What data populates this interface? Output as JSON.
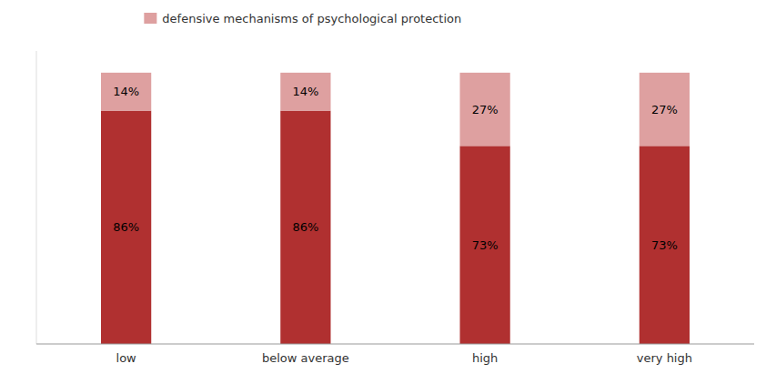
{
  "chart_data": {
    "type": "bar",
    "stacked": true,
    "categories": [
      "low",
      "below average",
      "high",
      "very high"
    ],
    "series": [
      {
        "color": "#b03030",
        "values": [
          86,
          86,
          73,
          73
        ],
        "value_labels": [
          "86%",
          "86%",
          "73%",
          "73%"
        ]
      },
      {
        "name": "defensive mechanisms of psychological protection",
        "color": "#dea0a0",
        "values": [
          14,
          14,
          27,
          27
        ],
        "value_labels": [
          "14%",
          "14%",
          "27%",
          "27%"
        ]
      }
    ],
    "ylim": [
      0,
      108
    ],
    "data_labels": true,
    "tick_labels": "x",
    "legend": "upper left",
    "grid": false
  }
}
